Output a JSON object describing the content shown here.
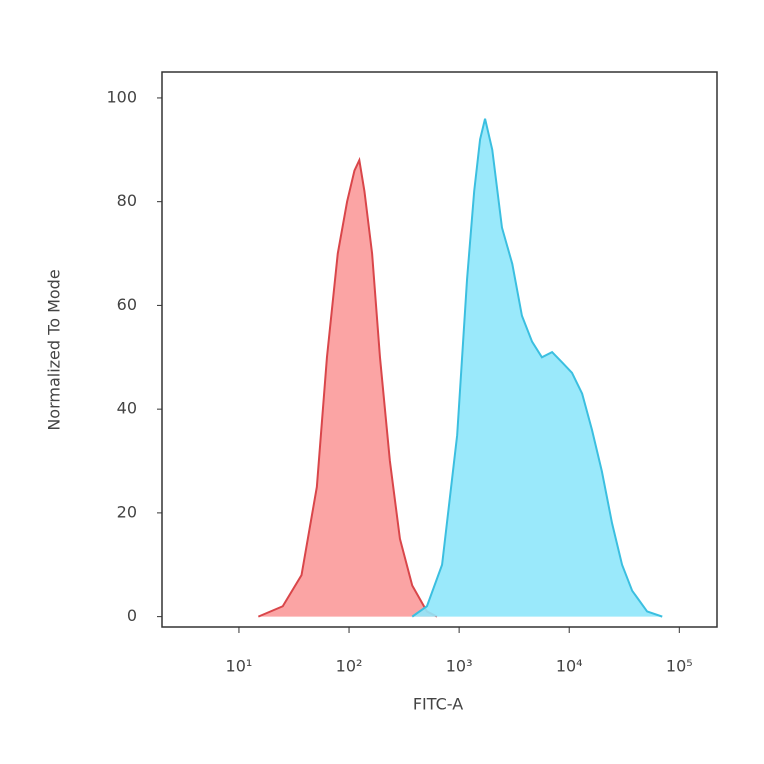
{
  "chart_data": {
    "type": "area",
    "xlabel": "FITC-A",
    "ylabel": "Normalized To Mode",
    "xscale": "log",
    "xlim": [
      2,
      220000
    ],
    "ylim": [
      -2,
      105
    ],
    "xticks": [
      {
        "value": 10,
        "label": "10¹"
      },
      {
        "value": 100,
        "label": "10²"
      },
      {
        "value": 1000,
        "label": "10³"
      },
      {
        "value": 10000,
        "label": "10⁴"
      },
      {
        "value": 100000,
        "label": "10⁵"
      }
    ],
    "yticks": [
      0,
      20,
      40,
      60,
      80,
      100
    ],
    "series": [
      {
        "color": "#d9464a",
        "fill": "#fb9a9a",
        "x": [
          15,
          25,
          37,
          51,
          63,
          79,
          96,
          112,
          124,
          138,
          162,
          191,
          235,
          290,
          375,
          510,
          630
        ],
        "values": [
          0,
          2,
          8,
          25,
          50,
          70,
          80,
          86,
          88,
          82,
          70,
          50,
          30,
          15,
          6,
          1,
          0
        ]
      },
      {
        "color": "#3bbfe0",
        "fill": "#8fe7fb",
        "x": [
          375,
          510,
          700,
          960,
          1180,
          1370,
          1550,
          1720,
          2000,
          2450,
          3040,
          3720,
          4600,
          5650,
          6990,
          8630,
          10600,
          13100,
          16100,
          19800,
          24500,
          30200,
          37300,
          51000,
          70000
        ],
        "values": [
          0,
          2,
          10,
          35,
          65,
          82,
          92,
          96,
          90,
          75,
          68,
          58,
          53,
          50,
          51,
          49,
          47,
          43,
          36,
          28,
          18,
          10,
          5,
          1,
          0
        ]
      }
    ]
  }
}
